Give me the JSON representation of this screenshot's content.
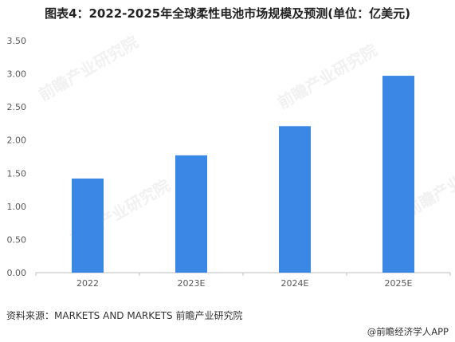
{
  "title": "图表4：2022-2025年全球柔性电池市场规模及预测(单位：亿美元)",
  "source": "资料来源：MARKETS AND MARKETS 前瞻产业研究院",
  "credit": "@前瞻经济学人APP",
  "watermark": "前瞻产业研究院",
  "colors": {
    "bar": "#3a87e6",
    "axis": "#bfbfbf",
    "tick_text": "#595959"
  },
  "chart_data": {
    "type": "bar",
    "categories": [
      "2022",
      "2023E",
      "2024E",
      "2025E"
    ],
    "values": [
      1.42,
      1.77,
      2.21,
      2.97
    ],
    "yticks": [
      "0.00",
      "0.50",
      "1.00",
      "1.50",
      "2.00",
      "2.50",
      "3.00",
      "3.50"
    ],
    "ylim": [
      0,
      3.5
    ],
    "grid": false,
    "xlabel": "",
    "ylabel": ""
  }
}
